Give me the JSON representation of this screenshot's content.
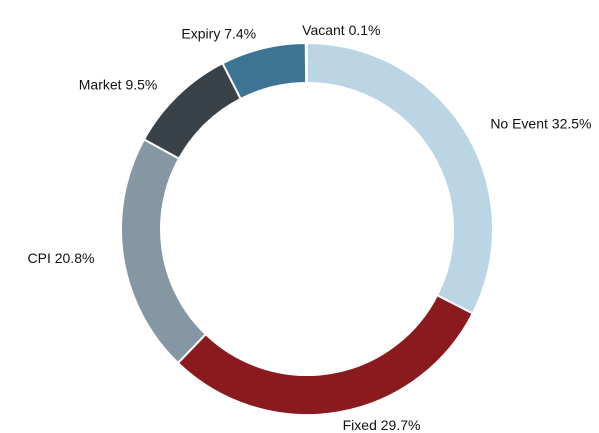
{
  "chart_data": {
    "type": "donut",
    "categories": [
      "No Event",
      "Fixed",
      "CPI",
      "Market",
      "Expiry",
      "Vacant"
    ],
    "values": [
      32.5,
      29.7,
      20.8,
      9.5,
      7.4,
      0.1
    ],
    "value_labels": [
      "32.5%",
      "29.7%",
      "20.8%",
      "9.5%",
      "7.4%",
      "0.1%"
    ],
    "colors": [
      "#bcd5e5",
      "#8b1a1f",
      "#8497a2",
      "#3a4249",
      "#3d7494",
      "#bcd5e5"
    ]
  }
}
